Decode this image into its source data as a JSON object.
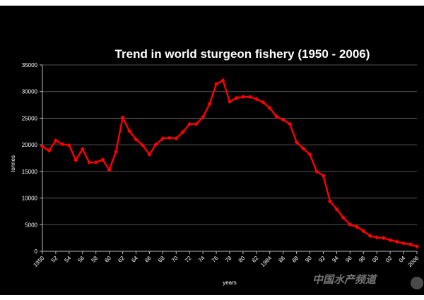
{
  "chart_data": {
    "type": "line",
    "title": "Trend in world sturgeon fishery (1950 - 2006)",
    "xlabel": "years",
    "ylabel": "tonnes",
    "ylim": [
      0,
      35000
    ],
    "yticks": [
      "0",
      "5000",
      "10000",
      "15000",
      "20000",
      "25000",
      "30000",
      "35000"
    ],
    "x_tick_labels": [
      "1950",
      "52",
      "54",
      "56",
      "58",
      "60",
      "62",
      "64",
      "66",
      "68",
      "70",
      "72",
      "74",
      "76",
      "78",
      "80",
      "82",
      "1984",
      "86",
      "88",
      "90",
      "92",
      "94",
      "96",
      "98",
      "00",
      "02",
      "04",
      "2006"
    ],
    "grid": true,
    "line_color": "#ff0000",
    "background_color": "#000000",
    "series": [
      {
        "x": [
          1950,
          1951,
          1952,
          1953,
          1954,
          1955,
          1956,
          1957,
          1958,
          1959,
          1960,
          1961,
          1962,
          1963,
          1964,
          1965,
          1966,
          1967,
          1968,
          1969,
          1970,
          1971,
          1972,
          1973,
          1974,
          1975,
          1976,
          1977,
          1978,
          1979,
          1980,
          1981,
          1982,
          1983,
          1984,
          1985,
          1986,
          1987,
          1988,
          1989,
          1990,
          1991,
          1992,
          1993,
          1994,
          1995,
          1996,
          1997,
          1998,
          1999,
          2000,
          2001,
          2002,
          2003,
          2004,
          2005,
          2006
        ],
        "values": [
          19700,
          18900,
          20800,
          20100,
          19900,
          17100,
          19200,
          16700,
          16700,
          17200,
          15300,
          18700,
          25100,
          22600,
          21000,
          19900,
          18200,
          20100,
          21200,
          21300,
          21200,
          22400,
          23900,
          23900,
          25200,
          27700,
          31400,
          32100,
          28100,
          28800,
          29000,
          29000,
          28600,
          28000,
          26900,
          25300,
          24700,
          23900,
          20500,
          19300,
          18200,
          15000,
          14200,
          9400,
          7900,
          6300,
          5000,
          4600,
          3800,
          2900,
          2600,
          2500,
          2100,
          1800,
          1500,
          1300,
          900
        ]
      }
    ]
  },
  "watermark": {
    "text": "中国水产频道"
  }
}
